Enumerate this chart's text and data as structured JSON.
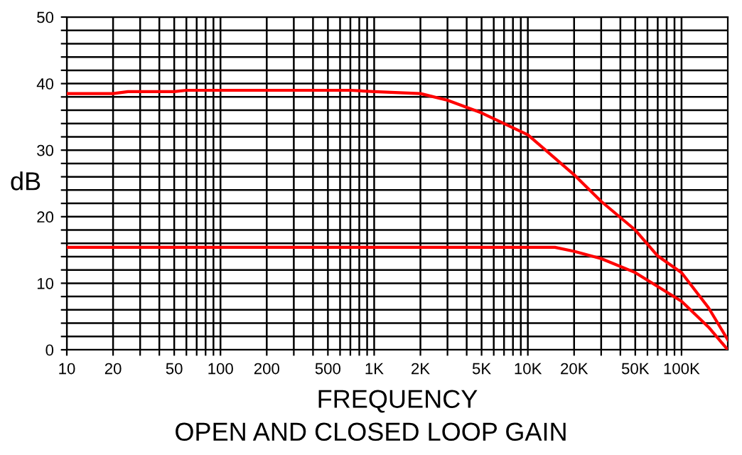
{
  "chart_data": {
    "type": "line",
    "title": "OPEN AND CLOSED LOOP GAIN",
    "xlabel": "FREQUENCY",
    "ylabel": "dB",
    "log": "x",
    "grid": true,
    "marker": "none",
    "line_style": "solid",
    "xlim": [
      10,
      200000
    ],
    "ylim": [
      0,
      50
    ],
    "xticks": [
      10,
      20,
      {
        "value": 30,
        "label": null
      },
      {
        "value": 40,
        "label": null
      },
      50,
      {
        "value": 60,
        "label": null
      },
      {
        "value": 70,
        "label": null
      },
      {
        "value": 80,
        "label": null
      },
      {
        "value": 90,
        "label": null
      },
      100,
      200,
      {
        "value": 300,
        "label": null
      },
      {
        "value": 400,
        "label": null
      },
      500,
      {
        "value": 600,
        "label": null
      },
      {
        "value": 700,
        "label": null
      },
      {
        "value": 800,
        "label": null
      },
      {
        "value": 900,
        "label": null
      },
      {
        "value": 1000,
        "label": "1K"
      },
      {
        "value": 2000,
        "label": "2K"
      },
      {
        "value": 3000,
        "label": null
      },
      {
        "value": 4000,
        "label": null
      },
      {
        "value": 5000,
        "label": "5K"
      },
      {
        "value": 6000,
        "label": null
      },
      {
        "value": 7000,
        "label": null
      },
      {
        "value": 8000,
        "label": null
      },
      {
        "value": 9000,
        "label": null
      },
      {
        "value": 10000,
        "label": "10K"
      },
      {
        "value": 20000,
        "label": "20K"
      },
      {
        "value": 30000,
        "label": null
      },
      {
        "value": 40000,
        "label": null
      },
      {
        "value": 50000,
        "label": "50K"
      },
      {
        "value": 60000,
        "label": null
      },
      {
        "value": 70000,
        "label": null
      },
      {
        "value": 80000,
        "label": null
      },
      {
        "value": 90000,
        "label": null
      },
      {
        "value": 100000,
        "label": "100K"
      }
    ],
    "yticks": [
      0,
      {
        "value": 2,
        "label": null
      },
      {
        "value": 4,
        "label": null
      },
      {
        "value": 6,
        "label": null
      },
      {
        "value": 8,
        "label": null
      },
      10,
      {
        "value": 12,
        "label": null
      },
      {
        "value": 14,
        "label": null
      },
      {
        "value": 16,
        "label": null
      },
      {
        "value": 18,
        "label": null
      },
      20,
      {
        "value": 22,
        "label": null
      },
      {
        "value": 24,
        "label": null
      },
      {
        "value": 26,
        "label": null
      },
      {
        "value": 28,
        "label": null
      },
      30,
      {
        "value": 32,
        "label": null
      },
      {
        "value": 34,
        "label": null
      },
      {
        "value": 36,
        "label": null
      },
      {
        "value": 38,
        "label": null
      },
      40,
      {
        "value": 42,
        "label": null
      },
      {
        "value": 44,
        "label": null
      },
      {
        "value": 46,
        "label": null
      },
      {
        "value": 48,
        "label": null
      },
      50
    ],
    "series": [
      {
        "color": "#ff0000",
        "x": [
          10,
          20,
          25,
          50,
          60,
          700,
          1000,
          2000,
          3000,
          5000,
          10000,
          20000,
          30000,
          50000,
          70000,
          100000,
          150000,
          200000
        ],
        "values": [
          38.5,
          38.5,
          38.8,
          38.8,
          39.0,
          39.0,
          38.8,
          38.5,
          37.5,
          35.6,
          32.3,
          26.3,
          22.3,
          18.0,
          14.1,
          11.6,
          6.3,
          1.5
        ]
      },
      {
        "color": "#ff0000",
        "x": [
          10,
          15000,
          20000,
          30000,
          50000,
          70000,
          100000,
          150000,
          200000
        ],
        "values": [
          15.4,
          15.4,
          14.8,
          13.7,
          11.6,
          9.5,
          7.3,
          3.4,
          0
        ]
      }
    ]
  }
}
